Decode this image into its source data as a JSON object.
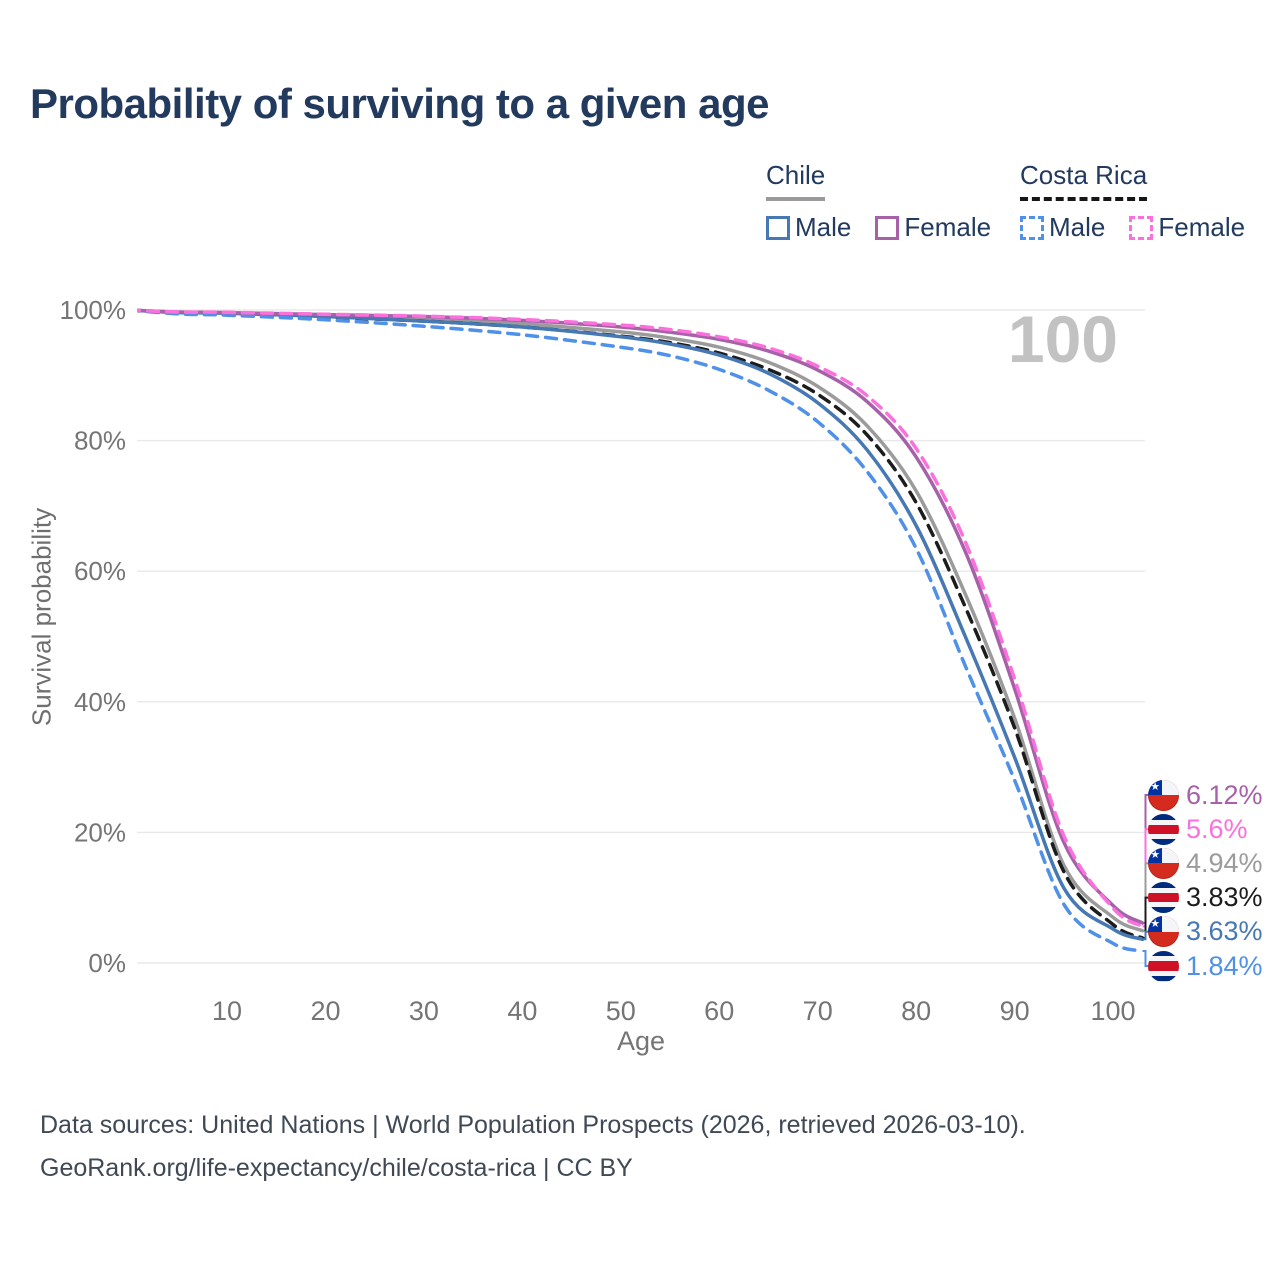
{
  "header": {
    "title": "Probability of surviving to a given age"
  },
  "legend": {
    "chile": {
      "label": "Chile",
      "male": "Male",
      "female": "Female"
    },
    "costa_rica": {
      "label": "Costa Rica",
      "male": "Male",
      "female": "Female"
    }
  },
  "colors": {
    "title_navy": "#223a5e",
    "tick_gray": "#757575",
    "gridline": "#e8e8e8",
    "watermark_gray": "#c2c2c2",
    "chile_male": "#4678b4",
    "chile_female": "#a661a8",
    "chile_total": "#9b9b9b",
    "costa_rica_male": "#4f90e8",
    "costa_rica_female": "#fa70dc",
    "costa_rica_total": "#1c1c1c"
  },
  "chart_data": {
    "type": "line",
    "title": "Probability of surviving to a given age",
    "xlabel": "Age",
    "ylabel": "Survival probability",
    "grid": true,
    "legend_position": "top-right",
    "watermark": "100",
    "xlim": [
      0,
      103
    ],
    "ylim_pct": [
      0,
      100
    ],
    "x_ticks": [
      10,
      20,
      30,
      40,
      50,
      60,
      70,
      80,
      90,
      100
    ],
    "y_tick_pcts": [
      100,
      80,
      60,
      40,
      20,
      0
    ],
    "y_tick_labels": [
      "100%",
      "80%",
      "60%",
      "40%",
      "20%",
      "0%"
    ],
    "ages": [
      0,
      5,
      10,
      20,
      30,
      40,
      50,
      55,
      60,
      65,
      70,
      75,
      80,
      85,
      90,
      95,
      100,
      103
    ],
    "series": [
      {
        "name": "Chile Female",
        "country": "Chile",
        "sex": "Female",
        "style": "solid",
        "color": "#a661a8",
        "flag": "chile",
        "end_label": "6.12%",
        "end_value": 6.12,
        "values": [
          100,
          99.7,
          99.6,
          99.3,
          99.0,
          98.4,
          97.4,
          96.6,
          95.5,
          93.7,
          90.8,
          86.0,
          77.5,
          63.0,
          42.0,
          18.5,
          8.8,
          6.12
        ]
      },
      {
        "name": "Costa Rica Female",
        "country": "Costa Rica",
        "sex": "Female",
        "style": "dashed",
        "color": "#fa70dc",
        "flag": "costa-rica",
        "end_label": "5.6%",
        "end_value": 5.6,
        "values": [
          100,
          99.7,
          99.65,
          99.35,
          99.05,
          98.55,
          97.7,
          97.0,
          95.9,
          94.2,
          91.4,
          86.9,
          78.8,
          64.5,
          43.5,
          19.5,
          8.4,
          5.6
        ]
      },
      {
        "name": "Chile Both sexes",
        "country": "Chile",
        "sex": "Both",
        "style": "solid",
        "color": "#9b9b9b",
        "flag": "chile",
        "end_label": "4.94%",
        "end_value": 4.94,
        "values": [
          100,
          99.65,
          99.55,
          99.15,
          98.65,
          97.9,
          96.65,
          95.7,
          94.3,
          92.0,
          88.3,
          82.3,
          72.3,
          56.5,
          37.5,
          15.0,
          7.0,
          4.94
        ]
      },
      {
        "name": "Costa Rica Both sexes",
        "country": "Costa Rica",
        "sex": "Both",
        "style": "dashed",
        "color": "#1c1c1c",
        "flag": "costa-rica",
        "end_label": "3.83%",
        "end_value": 3.83,
        "values": [
          100,
          99.55,
          99.45,
          98.9,
          98.3,
          97.4,
          96.0,
          95.0,
          93.4,
          90.9,
          87.1,
          80.9,
          70.5,
          54.5,
          36.0,
          14.0,
          5.9,
          3.83
        ]
      },
      {
        "name": "Chile Male",
        "country": "Chile",
        "sex": "Male",
        "style": "solid",
        "color": "#4678b4",
        "flag": "chile",
        "end_label": "3.63%",
        "end_value": 3.63,
        "values": [
          100,
          99.6,
          99.5,
          99.0,
          98.3,
          97.4,
          95.9,
          94.8,
          93.1,
          90.3,
          85.8,
          78.6,
          67.0,
          50.0,
          31.5,
          11.5,
          5.2,
          3.63
        ]
      },
      {
        "name": "Costa Rica Male",
        "country": "Costa Rica",
        "sex": "Male",
        "style": "dashed",
        "color": "#4f90e8",
        "flag": "costa-rica",
        "end_label": "1.84%",
        "end_value": 1.84,
        "values": [
          100,
          99.4,
          99.2,
          98.5,
          97.5,
          96.2,
          94.3,
          93.0,
          90.9,
          87.7,
          82.9,
          75.3,
          63.5,
          45.5,
          28.0,
          9.0,
          3.0,
          1.84
        ]
      }
    ]
  },
  "footer": {
    "line1": "Data sources: United Nations | World Population Prospects (2026, retrieved 2026-03-10).",
    "line2": "GeoRank.org/life-expectancy/chile/costa-rica | CC BY"
  }
}
